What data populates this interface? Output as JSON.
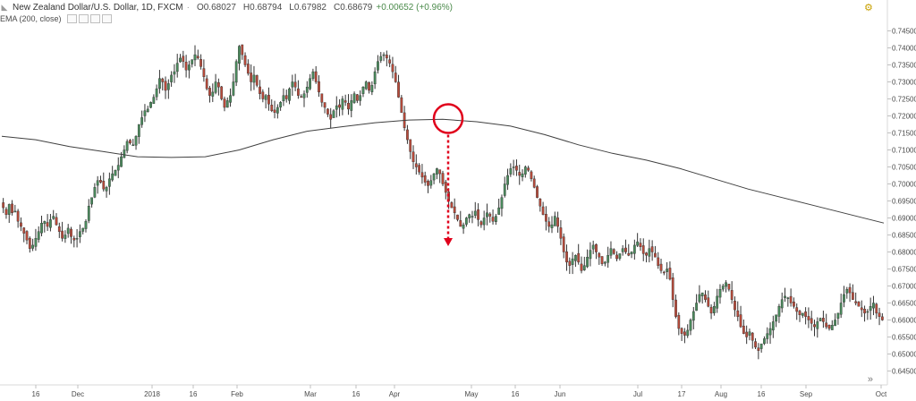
{
  "header": {
    "symbol": "New Zealand Dollar/U.S. Dollar, 1D, FXCM",
    "open": "O0.68027",
    "high": "H0.68794",
    "low": "L0.67982",
    "close": "C0.68679",
    "change": "+0.00652 (+0.96%)",
    "indicator": "EMA (200, close)"
  },
  "colors": {
    "up": "#4a8a5c",
    "down": "#b84a3a",
    "ema": "#404040",
    "annotation": "#e0001b",
    "axis_text": "#4a4a4a"
  },
  "chart_data": {
    "type": "candlestick",
    "ylim": [
      0.6425,
      0.7525
    ],
    "y_ticks": [
      "0.74500",
      "0.74000",
      "0.73500",
      "0.73000",
      "0.72500",
      "0.72000",
      "0.71500",
      "0.71000",
      "0.70500",
      "0.70000",
      "0.69500",
      "0.69000",
      "0.68500",
      "0.68000",
      "0.67500",
      "0.67000",
      "0.66500",
      "0.66000",
      "0.65500",
      "0.65000",
      "0.64500"
    ],
    "x_ticks": [
      "16",
      "Dec",
      "2018",
      "16",
      "Feb",
      "Mar",
      "16",
      "Apr",
      "May",
      "16",
      "Jun",
      "Jul",
      "17",
      "Aug",
      "16",
      "Sep",
      "Oct"
    ],
    "close_series": [
      0.693,
      0.691,
      0.694,
      0.6915,
      0.692,
      0.689,
      0.6875,
      0.6855,
      0.6835,
      0.681,
      0.682,
      0.684,
      0.686,
      0.6885,
      0.689,
      0.6875,
      0.6895,
      0.6905,
      0.688,
      0.686,
      0.684,
      0.685,
      0.687,
      0.6845,
      0.6835,
      0.684,
      0.686,
      0.687,
      0.689,
      0.6935,
      0.696,
      0.699,
      0.701,
      0.7005,
      0.6985,
      0.699,
      0.7015,
      0.703,
      0.704,
      0.7055,
      0.708,
      0.71,
      0.7125,
      0.712,
      0.7115,
      0.714,
      0.7175,
      0.7195,
      0.7215,
      0.722,
      0.724,
      0.7255,
      0.728,
      0.731,
      0.73,
      0.7275,
      0.7295,
      0.732,
      0.733,
      0.7355,
      0.737,
      0.736,
      0.7335,
      0.735,
      0.7365,
      0.738,
      0.737,
      0.7345,
      0.7315,
      0.728,
      0.726,
      0.727,
      0.73,
      0.7285,
      0.725,
      0.7225,
      0.7245,
      0.726,
      0.73,
      0.736,
      0.7405,
      0.738,
      0.735,
      0.7325,
      0.73,
      0.732,
      0.729,
      0.7265,
      0.725,
      0.726,
      0.7235,
      0.7215,
      0.721,
      0.7225,
      0.724,
      0.726,
      0.725,
      0.728,
      0.73,
      0.7285,
      0.726,
      0.7255,
      0.7265,
      0.7285,
      0.731,
      0.733,
      0.73,
      0.727,
      0.724,
      0.7225,
      0.7205,
      0.719,
      0.7215,
      0.723,
      0.7225,
      0.725,
      0.724,
      0.722,
      0.7245,
      0.7265,
      0.7245,
      0.726,
      0.7285,
      0.73,
      0.7275,
      0.729,
      0.733,
      0.736,
      0.7375,
      0.738,
      0.737,
      0.7355,
      0.733,
      0.73,
      0.7255,
      0.721,
      0.7165,
      0.713,
      0.7095,
      0.7065,
      0.705,
      0.7035,
      0.702,
      0.7005,
      0.6995,
      0.701,
      0.703,
      0.7045,
      0.703,
      0.7,
      0.6975,
      0.695,
      0.693,
      0.6915,
      0.6895,
      0.6875,
      0.688,
      0.69,
      0.691,
      0.6905,
      0.692,
      0.6895,
      0.688,
      0.69,
      0.6915,
      0.6905,
      0.689,
      0.6905,
      0.693,
      0.696,
      0.7,
      0.7025,
      0.7045,
      0.705,
      0.704,
      0.7025,
      0.703,
      0.705,
      0.704,
      0.7015,
      0.699,
      0.696,
      0.6935,
      0.691,
      0.689,
      0.6875,
      0.688,
      0.6905,
      0.6875,
      0.684,
      0.68,
      0.677,
      0.676,
      0.678,
      0.679,
      0.677,
      0.6745,
      0.676,
      0.6785,
      0.6805,
      0.682,
      0.68,
      0.6785,
      0.6765,
      0.677,
      0.679,
      0.681,
      0.6795,
      0.678,
      0.6795,
      0.681,
      0.68,
      0.679,
      0.68,
      0.682,
      0.683,
      0.6815,
      0.6795,
      0.679,
      0.681,
      0.68,
      0.6785,
      0.676,
      0.6745,
      0.674,
      0.675,
      0.672,
      0.666,
      0.661,
      0.6575,
      0.656,
      0.6555,
      0.657,
      0.66,
      0.6625,
      0.665,
      0.6675,
      0.668,
      0.666,
      0.664,
      0.662,
      0.664,
      0.667,
      0.669,
      0.67,
      0.671,
      0.669,
      0.666,
      0.663,
      0.661,
      0.658,
      0.656,
      0.655,
      0.6565,
      0.654,
      0.652,
      0.651,
      0.653,
      0.6545,
      0.656,
      0.6575,
      0.6595,
      0.6615,
      0.664,
      0.666,
      0.667,
      0.6665,
      0.665,
      0.664,
      0.6625,
      0.6615,
      0.662,
      0.661,
      0.66,
      0.659,
      0.658,
      0.6595,
      0.6605,
      0.6595,
      0.658,
      0.6575,
      0.6585,
      0.66,
      0.662,
      0.665,
      0.6675,
      0.669,
      0.668,
      0.666,
      0.665,
      0.664,
      0.663,
      0.662,
      0.6625,
      0.664,
      0.665,
      0.662,
      0.661,
      0.66
    ],
    "ema_series": [
      0.714,
      0.713,
      0.711,
      0.7095,
      0.708,
      0.7078,
      0.708,
      0.71,
      0.713,
      0.7155,
      0.7168,
      0.718,
      0.7188,
      0.719,
      0.7183,
      0.717,
      0.7145,
      0.7115,
      0.709,
      0.707,
      0.7045,
      0.7015,
      0.6985,
      0.696,
      0.6935,
      0.691,
      0.6885
    ],
    "annotation": {
      "type": "circle_with_down_arrow",
      "at_price": 0.7192
    }
  }
}
